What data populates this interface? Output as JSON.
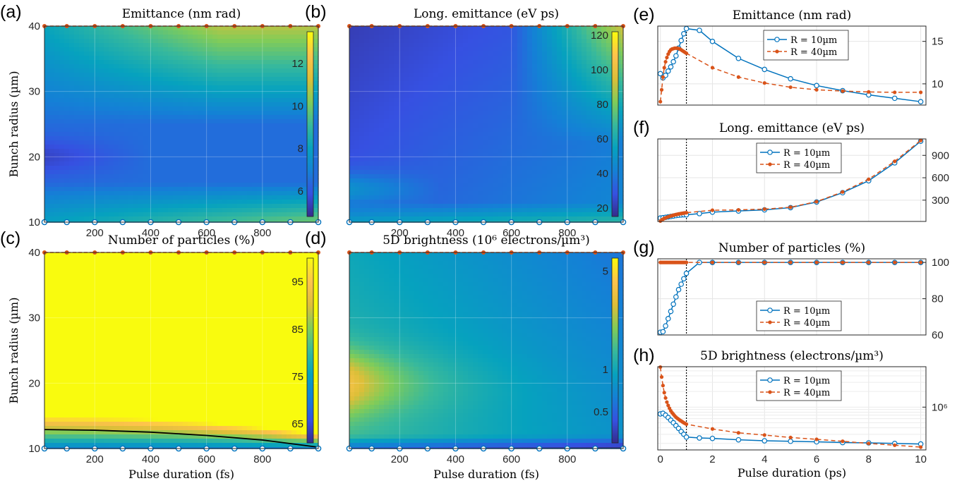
{
  "colors": {
    "blue": "#0072BD",
    "orange": "#D95319",
    "marker_blue_fill": "#ffffff"
  },
  "colormap": "parula",
  "chart_data": [
    {
      "id": "a",
      "panel_label": "(a)",
      "type": "heatmap",
      "title": "Emittance (nm rad)",
      "xlabel": "",
      "ylabel": "Bunch radius (µm)",
      "xticks": [
        "200",
        "400",
        "600",
        "800"
      ],
      "xtick_values": [
        200,
        400,
        600,
        800
      ],
      "yticks": [
        "10",
        "20",
        "30",
        "40"
      ],
      "ytick_values": [
        10,
        20,
        30,
        40
      ],
      "xlim": [
        20,
        1000
      ],
      "ylim": [
        10,
        40
      ],
      "colorbar": {
        "ticks": [
          "6",
          "8",
          "10",
          "12"
        ],
        "tick_values": [
          6,
          8,
          10,
          12
        ],
        "range": [
          4.8,
          13.5
        ],
        "scale": "linear"
      },
      "marker_rows": [
        10,
        40
      ],
      "marker_x": [
        20,
        100,
        200,
        300,
        400,
        500,
        600,
        700,
        800,
        900,
        1000
      ],
      "grid": true
    },
    {
      "id": "b",
      "panel_label": "(b)",
      "type": "heatmap",
      "title": "Long. emittance (eV ps)",
      "xlabel": "",
      "ylabel": "",
      "xticks": [
        "200",
        "400",
        "600",
        "800"
      ],
      "xtick_values": [
        200,
        400,
        600,
        800
      ],
      "xlim": [
        20,
        1000
      ],
      "ylim": [
        10,
        40
      ],
      "colorbar": {
        "ticks": [
          "20",
          "40",
          "60",
          "80",
          "100",
          "120"
        ],
        "tick_values": [
          20,
          40,
          60,
          80,
          100,
          120
        ],
        "range": [
          15,
          122
        ],
        "scale": "linear"
      },
      "marker_rows": [
        10,
        40
      ],
      "marker_x": [
        20,
        100,
        200,
        300,
        400,
        500,
        600,
        700,
        800,
        900,
        1000
      ],
      "grid": true
    },
    {
      "id": "c",
      "panel_label": "(c)",
      "type": "heatmap",
      "title": "Number of particles (%)",
      "xlabel": "Pulse duration (fs)",
      "ylabel": "Bunch radius (µm)",
      "xticks": [
        "200",
        "400",
        "600",
        "800"
      ],
      "xtick_values": [
        200,
        400,
        600,
        800
      ],
      "yticks": [
        "10",
        "20",
        "30",
        "40"
      ],
      "ytick_values": [
        10,
        20,
        30,
        40
      ],
      "xlim": [
        20,
        1000
      ],
      "ylim": [
        10,
        40
      ],
      "colorbar": {
        "ticks": [
          "65",
          "75",
          "85",
          "95"
        ],
        "tick_values": [
          65,
          75,
          85,
          95
        ],
        "range": [
          61,
          100
        ],
        "scale": "linear"
      },
      "boundary_line": {
        "x": [
          20,
          200,
          400,
          600,
          800,
          1000
        ],
        "y": [
          12.9,
          12.8,
          12.5,
          12.0,
          11.3,
          10.2
        ]
      },
      "marker_rows": [
        10,
        40
      ],
      "marker_x": [
        20,
        100,
        200,
        300,
        400,
        500,
        600,
        700,
        800,
        900,
        1000
      ],
      "grid": true
    },
    {
      "id": "d",
      "panel_label": "(d)",
      "type": "heatmap",
      "title": "5D brightness (10⁶ electrons/µm³)",
      "xlabel": "Pulse duration (fs)",
      "ylabel": "",
      "xticks": [
        "200",
        "400",
        "600",
        "800"
      ],
      "xtick_values": [
        200,
        400,
        600,
        800
      ],
      "xlim": [
        20,
        1000
      ],
      "ylim": [
        10,
        40
      ],
      "colorbar": {
        "ticks": [
          "0.5",
          "1",
          "5"
        ],
        "tick_values": [
          0.5,
          1,
          5
        ],
        "range": [
          0.3,
          6.2
        ],
        "scale": "log"
      },
      "marker_rows": [
        10,
        40
      ],
      "marker_x": [
        20,
        100,
        200,
        300,
        400,
        500,
        600,
        700,
        800,
        900,
        1000
      ],
      "grid": true
    },
    {
      "id": "e",
      "panel_label": "(e)",
      "type": "line",
      "title": "Emittance (nm rad)",
      "xlabel": "",
      "ylabel": "",
      "xlim": [
        -0.1,
        10.2
      ],
      "ylim": [
        7.5,
        16.8
      ],
      "yscale": "linear",
      "yticks": [
        "10",
        "15"
      ],
      "ytick_values": [
        10,
        15
      ],
      "vline_x": 1,
      "series": [
        {
          "name": "R = 10µm",
          "style": "solid-circle",
          "x": [
            0,
            0.1,
            0.2,
            0.3,
            0.4,
            0.5,
            0.6,
            0.7,
            0.8,
            0.9,
            1,
            1.5,
            2,
            3,
            4,
            5,
            6,
            7,
            8,
            9,
            10
          ],
          "y": [
            11.2,
            10.7,
            11.0,
            11.5,
            12.0,
            12.6,
            13.3,
            14.2,
            15.1,
            15.9,
            16.5,
            16.3,
            15.0,
            13.0,
            11.7,
            10.6,
            9.8,
            9.2,
            8.7,
            8.3,
            7.9
          ]
        },
        {
          "name": "R = 40µm",
          "style": "dashed-dot",
          "x": [
            0,
            0.05,
            0.1,
            0.15,
            0.2,
            0.25,
            0.3,
            0.35,
            0.4,
            0.45,
            0.5,
            0.55,
            0.6,
            0.65,
            0.7,
            0.75,
            0.8,
            0.85,
            0.9,
            0.95,
            1,
            2,
            3,
            4,
            5,
            6,
            7,
            8,
            9,
            10
          ],
          "y": [
            7.9,
            9.3,
            10.8,
            11.9,
            12.6,
            13.1,
            13.5,
            13.8,
            14.0,
            14.1,
            14.15,
            14.2,
            14.2,
            14.2,
            14.15,
            14.1,
            14.0,
            13.9,
            13.8,
            13.7,
            13.6,
            11.9,
            10.8,
            10.1,
            9.6,
            9.3,
            9.15,
            9.05,
            9.0,
            9.0
          ]
        }
      ],
      "legend": {
        "entries": [
          "R = 10µm",
          "R = 40µm"
        ],
        "placement": "top-right"
      },
      "grid": true
    },
    {
      "id": "f",
      "panel_label": "(f)",
      "type": "line",
      "title": "Long. emittance (eV ps)",
      "xlabel": "",
      "ylabel": "",
      "xlim": [
        -0.1,
        10.2
      ],
      "ylim": [
        15,
        1120
      ],
      "yscale": "linear",
      "yticks": [
        "300",
        "600",
        "900"
      ],
      "ytick_values": [
        300,
        600,
        900
      ],
      "vline_x": 1,
      "series": [
        {
          "name": "R = 10µm",
          "style": "solid-circle",
          "x": [
            0,
            0.1,
            0.2,
            0.3,
            0.4,
            0.5,
            0.6,
            0.7,
            0.8,
            0.9,
            1,
            1.5,
            2,
            3,
            4,
            5,
            6,
            7,
            8,
            9,
            10
          ],
          "y": [
            60,
            65,
            70,
            76,
            82,
            88,
            94,
            98,
            102,
            104,
            104,
            120,
            140,
            155,
            170,
            200,
            275,
            400,
            560,
            800,
            1090
          ]
        },
        {
          "name": "R = 40µm",
          "style": "dashed-dot",
          "x": [
            0,
            0.05,
            0.1,
            0.15,
            0.2,
            0.25,
            0.3,
            0.35,
            0.4,
            0.45,
            0.5,
            0.55,
            0.6,
            0.65,
            0.7,
            0.75,
            0.8,
            0.85,
            0.9,
            0.95,
            1,
            2,
            3,
            4,
            5,
            6,
            7,
            8,
            9,
            10
          ],
          "y": [
            20,
            35,
            45,
            55,
            63,
            70,
            76,
            82,
            88,
            93,
            98,
            103,
            107,
            111,
            115,
            118,
            121,
            124,
            127,
            130,
            132,
            165,
            170,
            180,
            205,
            280,
            410,
            580,
            820,
            1100
          ]
        }
      ],
      "legend": {
        "entries": [
          "R = 10µm",
          "R = 40µm"
        ],
        "placement": "top-center"
      },
      "grid": true
    },
    {
      "id": "g",
      "panel_label": "(g)",
      "type": "line",
      "title": "Number of particles (%)",
      "xlabel": "",
      "ylabel": "",
      "xlim": [
        -0.1,
        10.2
      ],
      "ylim": [
        60,
        102
      ],
      "yscale": "linear",
      "yticks": [
        "60",
        "80",
        "100"
      ],
      "ytick_values": [
        60,
        80,
        100
      ],
      "vline_x": 1,
      "series": [
        {
          "name": "R = 10µm",
          "style": "solid-circle",
          "x": [
            0,
            0.1,
            0.2,
            0.3,
            0.4,
            0.5,
            0.6,
            0.7,
            0.8,
            0.9,
            1,
            1.5,
            2,
            3,
            4,
            5,
            6,
            7,
            8,
            9,
            10
          ],
          "y": [
            61.5,
            61.8,
            65,
            69,
            73,
            77,
            81,
            85,
            88,
            91,
            94,
            100,
            100,
            100,
            100,
            100,
            100,
            100,
            100,
            100,
            100
          ]
        },
        {
          "name": "R = 40µm",
          "style": "dashed-dot",
          "x": [
            0,
            0.05,
            0.1,
            0.15,
            0.2,
            0.25,
            0.3,
            0.35,
            0.4,
            0.45,
            0.5,
            0.55,
            0.6,
            0.65,
            0.7,
            0.75,
            0.8,
            0.85,
            0.9,
            0.95,
            1,
            2,
            3,
            4,
            5,
            6,
            7,
            8,
            9,
            10
          ],
          "y": [
            100,
            100,
            100,
            100,
            100,
            100,
            100,
            100,
            100,
            100,
            100,
            100,
            100,
            100,
            100,
            100,
            100,
            100,
            100,
            100,
            100,
            100,
            100,
            100,
            100,
            100,
            100,
            100,
            100,
            100
          ]
        }
      ],
      "legend": {
        "entries": [
          "R = 10µm",
          "R = 40µm"
        ],
        "placement": "bottom-center"
      },
      "grid": true
    },
    {
      "id": "h",
      "panel_label": "(h)",
      "type": "line",
      "title": "5D brightness (electrons/µm³)",
      "xlabel": "Pulse duration (ps)",
      "ylabel": "",
      "xlim": [
        -0.1,
        10.2
      ],
      "ylim": [
        150000,
        6000000
      ],
      "yscale": "log",
      "xticks": [
        "0",
        "2",
        "4",
        "6",
        "8",
        "10"
      ],
      "xtick_values": [
        0,
        2,
        4,
        6,
        8,
        10
      ],
      "yticks": [
        "10⁶"
      ],
      "ytick_values": [
        1000000
      ],
      "vline_x": 1,
      "series": [
        {
          "name": "R = 10µm",
          "style": "solid-circle",
          "x": [
            0,
            0.1,
            0.2,
            0.3,
            0.4,
            0.5,
            0.6,
            0.7,
            0.8,
            0.9,
            1,
            1.5,
            2,
            3,
            4,
            5,
            6,
            7,
            8,
            9,
            10
          ],
          "y": [
            740000,
            760000,
            700000,
            630000,
            560000,
            500000,
            440000,
            390000,
            340000,
            300000,
            265000,
            255000,
            250000,
            235000,
            225000,
            220000,
            215000,
            208000,
            205000,
            200000,
            195000
          ]
        },
        {
          "name": "R = 40µm",
          "style": "dashed-dot",
          "x": [
            0,
            0.05,
            0.1,
            0.15,
            0.2,
            0.25,
            0.3,
            0.35,
            0.4,
            0.45,
            0.5,
            0.55,
            0.6,
            0.65,
            0.7,
            0.75,
            0.8,
            0.85,
            0.9,
            0.95,
            1,
            2,
            3,
            4,
            5,
            6,
            7,
            8,
            9,
            10
          ],
          "y": [
            5900000,
            3800000,
            2600000,
            1900000,
            1500000,
            1250000,
            1080000,
            950000,
            850000,
            780000,
            730000,
            680000,
            640000,
            610000,
            585000,
            560000,
            540000,
            520000,
            500000,
            485000,
            470000,
            380000,
            320000,
            290000,
            260000,
            240000,
            220000,
            200000,
            185000,
            170000
          ]
        }
      ],
      "legend": {
        "entries": [
          "R = 10µm",
          "R = 40µm"
        ],
        "placement": "top-center"
      },
      "grid": true
    }
  ]
}
